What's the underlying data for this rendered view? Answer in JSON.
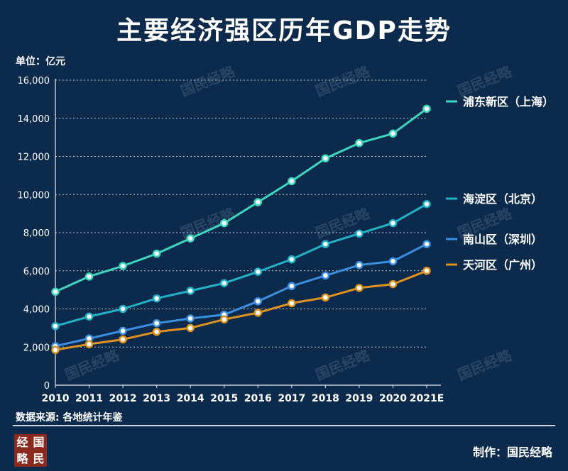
{
  "header": {
    "title": "主要经济强区历年GDP走势",
    "unit": "单位：亿元"
  },
  "footer": {
    "source": "数据来源: 各地统计年鉴",
    "credit": "制作：国民经略",
    "logo_chars": [
      "经",
      "国",
      "略",
      "民"
    ]
  },
  "watermark": "国民经略",
  "chart_data": {
    "type": "line",
    "categories": [
      "2010",
      "2011",
      "2012",
      "2013",
      "2014",
      "2015",
      "2016",
      "2017",
      "2018",
      "2019",
      "2020",
      "2021E"
    ],
    "ylim": [
      0,
      16000
    ],
    "yticks": [
      0,
      2000,
      4000,
      6000,
      8000,
      10000,
      12000,
      14000,
      16000
    ],
    "ytick_labels": [
      "0",
      "2,000",
      "4,000",
      "6,000",
      "8,000",
      "10,000",
      "12,000",
      "14,000",
      "16,000"
    ],
    "grid": true,
    "legend_position": "right",
    "series": [
      {
        "name": "浦东新区（上海）",
        "color": "#3dd6be",
        "values": [
          4900,
          5700,
          6250,
          6900,
          7700,
          8500,
          9600,
          10700,
          11900,
          12700,
          13200,
          14500
        ]
      },
      {
        "name": "海淀区（北京）",
        "color": "#22b2c8",
        "values": [
          3100,
          3600,
          4000,
          4550,
          4950,
          5350,
          5950,
          6600,
          7400,
          7950,
          8500,
          9500
        ]
      },
      {
        "name": "南山区（深圳）",
        "color": "#3b8fe0",
        "values": [
          2050,
          2450,
          2850,
          3250,
          3500,
          3700,
          4400,
          5200,
          5750,
          6300,
          6500,
          7400
        ]
      },
      {
        "name": "天河区（广州）",
        "color": "#e0921e",
        "values": [
          1850,
          2150,
          2400,
          2800,
          3000,
          3450,
          3800,
          4300,
          4600,
          5100,
          5300,
          6000
        ]
      }
    ]
  }
}
